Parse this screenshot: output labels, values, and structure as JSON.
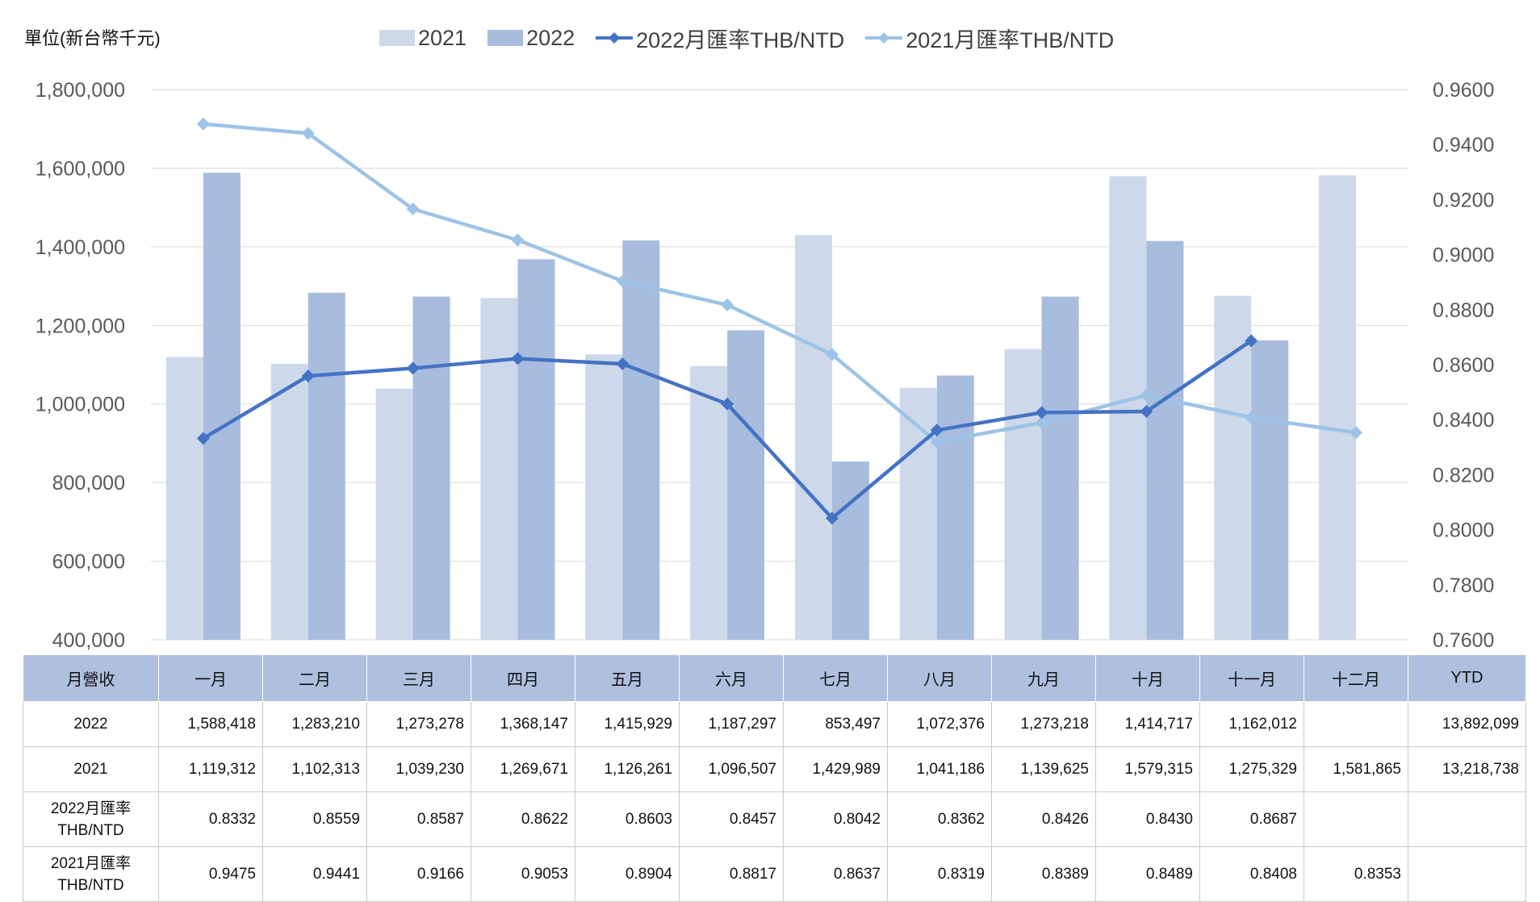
{
  "chart_data": {
    "type": "bar",
    "unit_label": "單位(新台幣千元)",
    "categories": [
      "一月",
      "二月",
      "三月",
      "四月",
      "五月",
      "六月",
      "七月",
      "八月",
      "九月",
      "十月",
      "十一月",
      "十二月"
    ],
    "series": [
      {
        "name": "2021",
        "kind": "bar",
        "axis": "left",
        "color": "#cdd8ea",
        "values": [
          1119312,
          1102313,
          1039230,
          1269671,
          1126261,
          1096507,
          1429989,
          1041186,
          1139625,
          1579315,
          1275329,
          1581865
        ]
      },
      {
        "name": "2022",
        "kind": "bar",
        "axis": "left",
        "color": "#a8bcde",
        "values": [
          1588418,
          1283210,
          1273278,
          1368147,
          1415929,
          1187297,
          853497,
          1072376,
          1273218,
          1414717,
          1162012,
          null
        ]
      },
      {
        "name": "2022月匯率THB/NTD",
        "kind": "line",
        "axis": "right",
        "color": "#4472c4",
        "values": [
          0.8332,
          0.8559,
          0.8587,
          0.8622,
          0.8603,
          0.8457,
          0.8042,
          0.8362,
          0.8426,
          0.843,
          0.8687,
          null
        ]
      },
      {
        "name": "2021月匯率THB/NTD",
        "kind": "line",
        "axis": "right",
        "color": "#9dc3e6",
        "values": [
          0.9475,
          0.9441,
          0.9166,
          0.9053,
          0.8904,
          0.8817,
          0.8637,
          0.8319,
          0.8389,
          0.8489,
          0.8408,
          0.8353
        ]
      }
    ],
    "y_left": {
      "min": 400000,
      "max": 1800000,
      "step": 200000,
      "tick_labels": [
        "400,000",
        "600,000",
        "800,000",
        "1,000,000",
        "1,200,000",
        "1,400,000",
        "1,600,000",
        "1,800,000"
      ]
    },
    "y_right": {
      "min": 0.76,
      "max": 0.96,
      "step": 0.02,
      "tick_labels": [
        "0.7600",
        "0.7800",
        "0.8000",
        "0.8200",
        "0.8400",
        "0.8600",
        "0.8800",
        "0.9000",
        "0.9200",
        "0.9400",
        "0.9600"
      ]
    },
    "grid": true,
    "legend_position": "top"
  },
  "table": {
    "header_label": "月營收",
    "months": [
      "一月",
      "二月",
      "三月",
      "四月",
      "五月",
      "六月",
      "七月",
      "八月",
      "九月",
      "十月",
      "十一月",
      "十二月"
    ],
    "ytd_label": "YTD",
    "rows": [
      {
        "label_lines": [
          "2022"
        ],
        "rate": false,
        "cells": [
          "1,588,418",
          "1,283,210",
          "1,273,278",
          "1,368,147",
          "1,415,929",
          "1,187,297",
          "853,497",
          "1,072,376",
          "1,273,218",
          "1,414,717",
          "1,162,012",
          "",
          "13,892,099"
        ]
      },
      {
        "label_lines": [
          "2021"
        ],
        "rate": false,
        "cells": [
          "1,119,312",
          "1,102,313",
          "1,039,230",
          "1,269,671",
          "1,126,261",
          "1,096,507",
          "1,429,989",
          "1,041,186",
          "1,139,625",
          "1,579,315",
          "1,275,329",
          "1,581,865",
          "13,218,738"
        ]
      },
      {
        "label_lines": [
          "2022月匯率",
          "THB/NTD"
        ],
        "rate": true,
        "cells": [
          "0.8332",
          "0.8559",
          "0.8587",
          "0.8622",
          "0.8603",
          "0.8457",
          "0.8042",
          "0.8362",
          "0.8426",
          "0.8430",
          "0.8687",
          "",
          ""
        ]
      },
      {
        "label_lines": [
          "2021月匯率",
          "THB/NTD"
        ],
        "rate": true,
        "cells": [
          "0.9475",
          "0.9441",
          "0.9166",
          "0.9053",
          "0.8904",
          "0.8817",
          "0.8637",
          "0.8319",
          "0.8389",
          "0.8489",
          "0.8408",
          "0.8353",
          ""
        ]
      }
    ]
  }
}
